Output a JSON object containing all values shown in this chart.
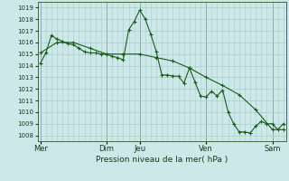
{
  "title": "Pression niveau de la mer( hPa )",
  "bg_color": "#cce8e8",
  "grid_color": "#aacccc",
  "line_color": "#1a5c1a",
  "ylim": [
    1007.5,
    1019.5
  ],
  "yticks": [
    1008,
    1009,
    1010,
    1011,
    1012,
    1013,
    1014,
    1015,
    1016,
    1017,
    1018,
    1019
  ],
  "day_labels": [
    "Mer",
    "Dim",
    "Jeu",
    "Ven",
    "Sam"
  ],
  "day_positions": [
    0,
    12,
    18,
    30,
    42
  ],
  "xlim": [
    -0.5,
    44.5
  ],
  "series1_x": [
    0,
    1,
    2,
    3,
    4,
    5,
    6,
    7,
    8,
    9,
    10,
    11,
    12,
    13,
    14,
    15,
    16,
    17,
    18,
    19,
    20,
    21,
    22,
    23,
    24,
    25,
    26,
    27,
    28,
    29,
    30,
    31,
    32,
    33,
    34,
    35,
    36,
    37,
    38,
    39,
    40,
    41,
    42,
    43,
    44
  ],
  "series1_y": [
    1014.2,
    1015.1,
    1016.6,
    1016.3,
    1016.1,
    1015.9,
    1015.8,
    1015.5,
    1015.2,
    1015.1,
    1015.1,
    1015.0,
    1015.0,
    1014.8,
    1014.7,
    1014.5,
    1017.1,
    1017.8,
    1018.8,
    1018.0,
    1016.7,
    1015.2,
    1013.2,
    1013.2,
    1013.1,
    1013.1,
    1012.5,
    1013.8,
    1012.6,
    1011.4,
    1011.3,
    1011.8,
    1011.4,
    1011.9,
    1010.0,
    1009.0,
    1008.3,
    1008.3,
    1008.2,
    1008.8,
    1009.2,
    1009.0,
    1009.0,
    1008.5,
    1009.0
  ],
  "series2_x": [
    0,
    3,
    6,
    9,
    12,
    15,
    18,
    21,
    24,
    27,
    30,
    33,
    36,
    39,
    42,
    44
  ],
  "series2_y": [
    1015.1,
    1016.0,
    1016.0,
    1015.5,
    1015.0,
    1015.0,
    1015.0,
    1014.7,
    1014.4,
    1013.8,
    1013.0,
    1012.3,
    1011.5,
    1010.2,
    1008.5,
    1008.5
  ]
}
